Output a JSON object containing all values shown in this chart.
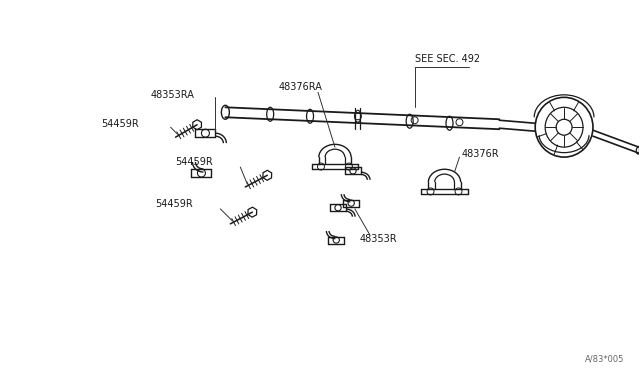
{
  "bg_color": "#ffffff",
  "line_color": "#1a1a1a",
  "watermark": "A/83*005",
  "labels": {
    "SEE_SEC_492": "SEE SEC. 492",
    "48376RA": "48376RA",
    "48353RA": "48353RA",
    "54459R_1": "54459R",
    "54459R_2": "54459R",
    "54459R_3": "54459R",
    "48376R": "48376R",
    "48353R": "48353R"
  }
}
